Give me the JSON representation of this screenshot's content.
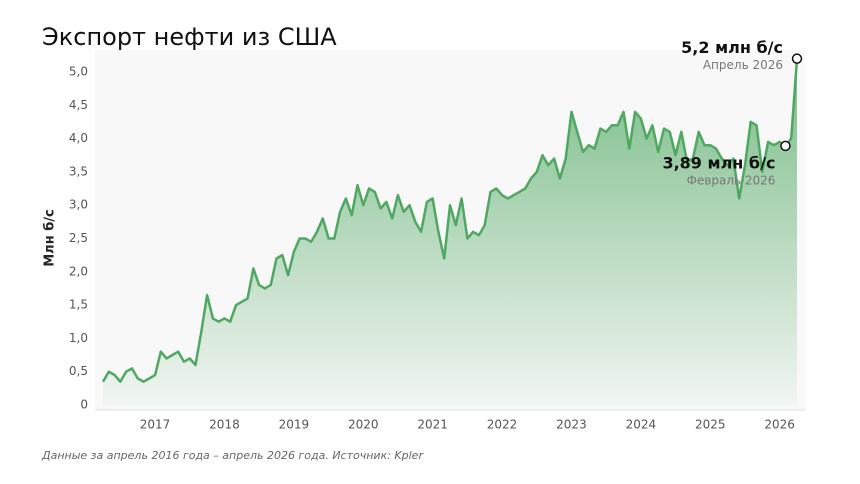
{
  "chart_data": {
    "type": "area",
    "title": "Экспорт нефти из США",
    "ylabel": "Млн б/с",
    "footnote": "Данные за апрель 2016 года – апрель 2026 года. Источник: Kpler",
    "color": "#4fa862",
    "categories": [
      null,
      null,
      null,
      null,
      null,
      null,
      null,
      null,
      null,
      "2017",
      null,
      null,
      null,
      null,
      null,
      null,
      null,
      null,
      null,
      null,
      null,
      "2018",
      null,
      null,
      null,
      null,
      null,
      null,
      null,
      null,
      null,
      null,
      null,
      "2019",
      null,
      null,
      null,
      null,
      null,
      null,
      null,
      null,
      null,
      null,
      null,
      "2020",
      null,
      null,
      null,
      null,
      null,
      null,
      null,
      null,
      null,
      null,
      null,
      "2021",
      null,
      null,
      null,
      null,
      null,
      null,
      null,
      null,
      null,
      null,
      null,
      "2022",
      null,
      null,
      null,
      null,
      null,
      null,
      null,
      null,
      null,
      null,
      null,
      "2023",
      null,
      null,
      null,
      null,
      null,
      null,
      null,
      null,
      null,
      null,
      null,
      "2024",
      null,
      null,
      null,
      null,
      null,
      null,
      null,
      null,
      null,
      null,
      null,
      "2025",
      null,
      null,
      null,
      null,
      null,
      null,
      null,
      null,
      null,
      null,
      null,
      "2026",
      null,
      null,
      null
    ],
    "values": [
      0.35,
      0.5,
      0.45,
      0.35,
      0.5,
      0.55,
      0.4,
      0.35,
      0.4,
      0.45,
      0.8,
      0.7,
      0.75,
      0.8,
      0.65,
      0.7,
      0.6,
      1.1,
      1.65,
      1.3,
      1.25,
      1.3,
      1.25,
      1.5,
      1.55,
      1.6,
      2.05,
      1.8,
      1.75,
      1.8,
      2.2,
      2.25,
      1.95,
      2.3,
      2.5,
      2.5,
      2.45,
      2.6,
      2.8,
      2.5,
      2.5,
      2.9,
      3.1,
      2.85,
      3.3,
      3.0,
      3.25,
      3.2,
      2.95,
      3.05,
      2.8,
      3.15,
      2.9,
      3.0,
      2.75,
      2.6,
      3.05,
      3.1,
      2.6,
      2.2,
      3.0,
      2.7,
      3.1,
      2.5,
      2.6,
      2.55,
      2.7,
      3.2,
      3.25,
      3.15,
      3.1,
      3.15,
      3.2,
      3.25,
      3.4,
      3.5,
      3.75,
      3.6,
      3.7,
      3.4,
      3.7,
      4.4,
      4.1,
      3.8,
      3.9,
      3.85,
      4.15,
      4.1,
      4.2,
      4.2,
      4.4,
      3.85,
      4.4,
      4.3,
      4.0,
      4.2,
      3.8,
      4.15,
      4.1,
      3.75,
      4.1,
      3.65,
      3.7,
      4.1,
      3.9,
      3.9,
      3.85,
      3.7,
      3.6,
      3.7,
      3.1,
      3.6,
      4.25,
      4.2,
      3.5,
      3.95,
      3.9,
      3.95,
      3.89,
      4.0,
      5.2
    ],
    "ylim": [
      0,
      5.3
    ],
    "yticks": [
      0,
      {
        "value": 0.5,
        "label": "0,5"
      },
      {
        "value": 1,
        "label": "1,0"
      },
      {
        "value": 1.5,
        "label": "1,5"
      },
      {
        "value": 2,
        "label": "2,0"
      },
      {
        "value": 2.5,
        "label": "2,5"
      },
      {
        "value": 3,
        "label": "3,0"
      },
      {
        "value": 3.5,
        "label": "3,5"
      },
      {
        "value": 4,
        "label": "4,0"
      },
      {
        "value": 4.5,
        "label": "4,5"
      },
      {
        "value": 5,
        "label": "5,0"
      }
    ],
    "annotations": [
      {
        "value": 5.2,
        "label": "5,2 млн б/с",
        "date": "Апрель 2026"
      },
      {
        "value": 3.89,
        "label": "3,89 млн б/с",
        "date": "Февраль 2026"
      }
    ]
  }
}
